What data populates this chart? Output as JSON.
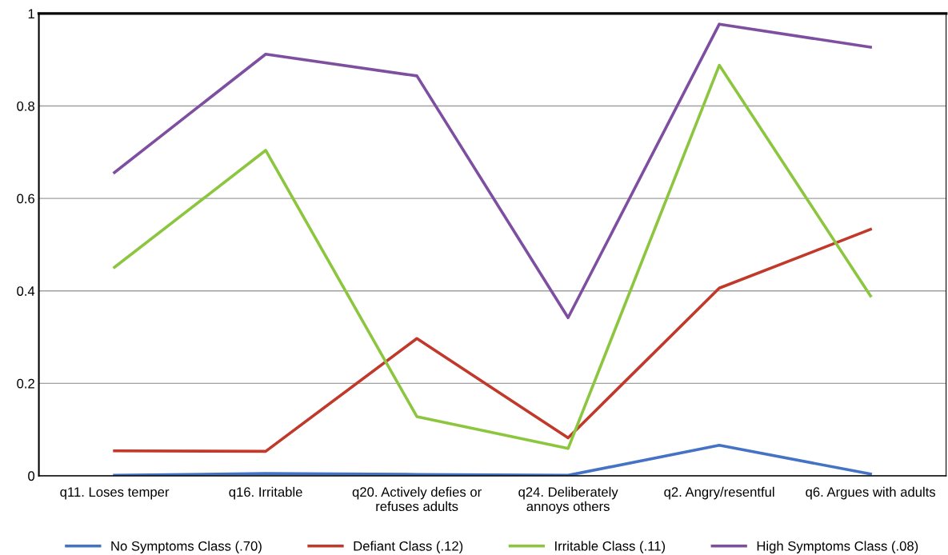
{
  "chart_data": {
    "type": "line",
    "categories": [
      "q11. Loses temper",
      "q16. Irritable",
      "q20. Actively defies or\nrefuses adults",
      "q24. Deliberately\nannoys others",
      "q2. Angry/resentful",
      "q6. Argues with adults"
    ],
    "series": [
      {
        "name": "No Symptoms Class (.70)",
        "color": "#4472c4",
        "values": [
          0.001,
          0.005,
          0.003,
          0.001,
          0.066,
          0.004
        ]
      },
      {
        "name": "Defiant Class (.12)",
        "color": "#c0392b",
        "values": [
          0.054,
          0.053,
          0.297,
          0.082,
          0.406,
          0.533
        ]
      },
      {
        "name": "Irritable Class (.11)",
        "color": "#8cc63f",
        "values": [
          0.451,
          0.704,
          0.128,
          0.059,
          0.888,
          0.389
        ]
      },
      {
        "name": "High Symptoms Class (.08)",
        "color": "#7e4fa0",
        "values": [
          0.656,
          0.912,
          0.865,
          0.342,
          0.977,
          0.927
        ]
      }
    ],
    "ylim": [
      0,
      1
    ],
    "yticks": [
      0,
      0.2,
      0.4,
      0.6,
      0.8,
      1
    ],
    "grid": "y",
    "legend": "bottom",
    "marker": "none",
    "line_style": "solid"
  }
}
